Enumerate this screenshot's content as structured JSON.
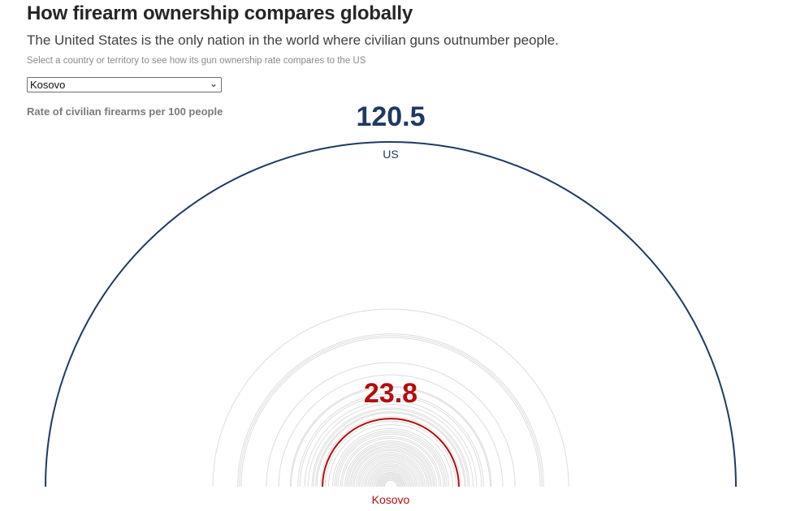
{
  "header": {
    "title": "How firearm ownership compares globally",
    "subtitle": "The United States is the only nation in the world where civilian guns outnumber people.",
    "instruction": "Select a country or territory to see how its gun ownership rate compares to the US"
  },
  "selector": {
    "selected": "Kosovo"
  },
  "colors": {
    "us": "#1d3a63",
    "selected": "#b30d0d",
    "other": "#dddddd"
  },
  "chart_data": {
    "type": "radial-semicircle",
    "title": "Rate of civilian firearms per 100 people",
    "unit": "civilian firearms per 100 people",
    "reference": {
      "name": "US",
      "value": 120.5
    },
    "selected": {
      "name": "Kosovo",
      "value": 23.8
    },
    "other_countries_values": [
      62.1,
      53.4,
      52.8,
      52.2,
      43.4,
      39.1,
      35.1,
      34.7,
      32.4,
      31.7,
      30.0,
      28.8,
      27.5,
      27.0,
      26.2,
      25.8,
      24.5,
      22.9,
      21.7,
      20.3,
      19.6,
      19.0,
      18.4,
      17.5,
      16.9,
      16.0,
      15.4,
      14.9,
      14.3,
      13.8,
      13.2,
      12.7,
      12.0,
      11.4,
      10.9,
      10.3,
      9.7,
      9.1,
      8.6,
      8.0,
      7.5,
      7.0,
      6.5,
      6.0,
      5.5,
      5.0,
      4.6,
      4.2,
      3.8,
      3.4,
      3.0,
      2.6,
      2.2
    ]
  }
}
